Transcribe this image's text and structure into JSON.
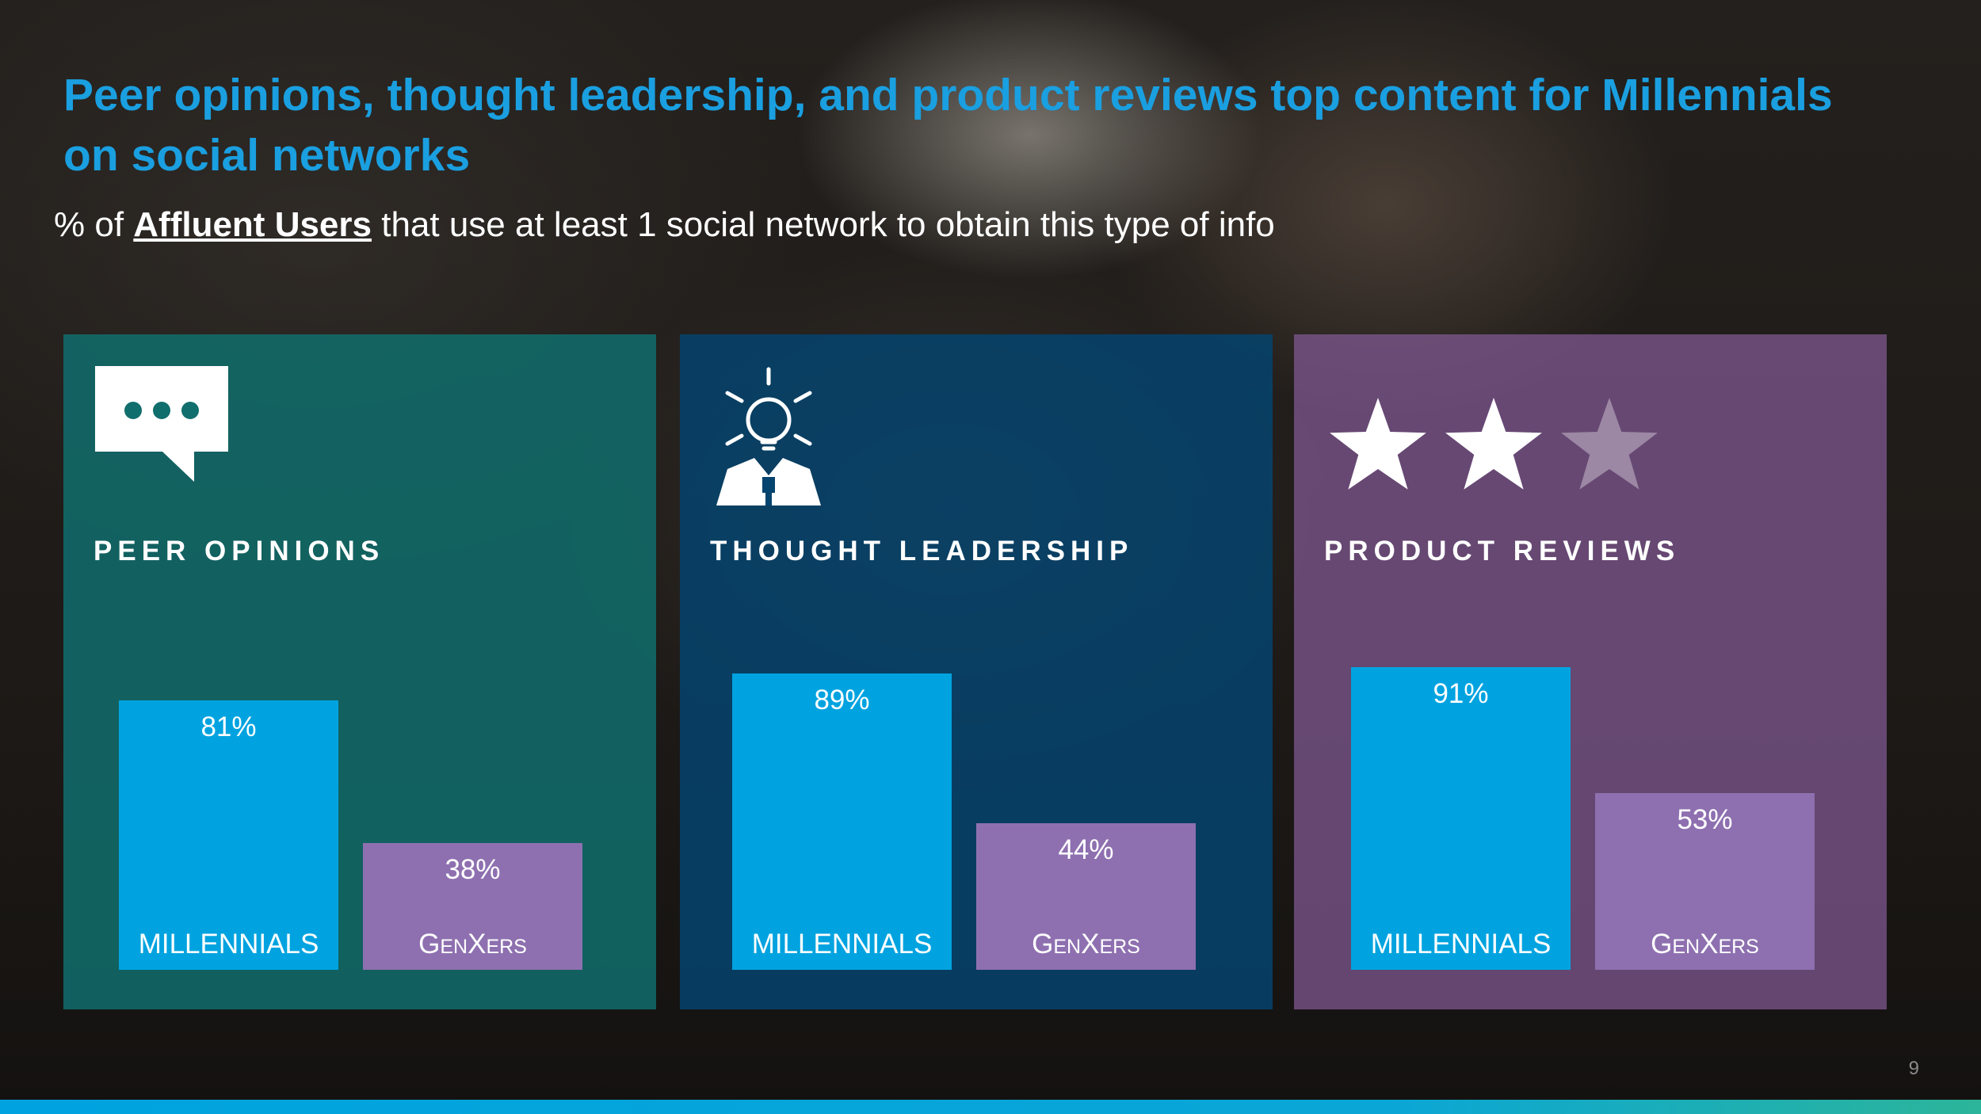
{
  "slide": {
    "title": "Peer opinions, thought leadership, and product reviews top content for Millennials on social networks",
    "subtitle_pre": "% of ",
    "subtitle_emph": "Affluent Users",
    "subtitle_post": " that use at least 1 social network to obtain this type of info",
    "page_number": "9"
  },
  "colors": {
    "title": "#1a9fe0",
    "millennials_bar": "#00a3e0",
    "genxers_bar": "#8e70b0",
    "panel_peer": "#106e6c",
    "panel_thought": "#05446e",
    "panel_product": "#825a96"
  },
  "icons": {
    "peer": "speech-bubble-icon",
    "thought": "lightbulb-person-icon",
    "product": "star-rating-icon"
  },
  "product_rating": {
    "filled_stars": 2,
    "total_stars": 3
  },
  "chart_data": [
    {
      "type": "bar",
      "title": "PEER OPINIONS",
      "categories": [
        "MILLENNIALS",
        "GENXERS"
      ],
      "values": [
        81,
        38
      ],
      "value_labels": [
        "81%",
        "38%"
      ],
      "unit": "%",
      "ylim": [
        0,
        100
      ],
      "grid": false
    },
    {
      "type": "bar",
      "title": "THOUGHT LEADERSHIP",
      "categories": [
        "MILLENNIALS",
        "GENXERS"
      ],
      "values": [
        89,
        44
      ],
      "value_labels": [
        "89%",
        "44%"
      ],
      "unit": "%",
      "ylim": [
        0,
        100
      ],
      "grid": false
    },
    {
      "type": "bar",
      "title": "PRODUCT REVIEWS",
      "categories": [
        "MILLENNIALS",
        "GENXERS"
      ],
      "values": [
        91,
        53
      ],
      "value_labels": [
        "91%",
        "53%"
      ],
      "unit": "%",
      "ylim": [
        0,
        100
      ],
      "grid": false
    }
  ]
}
